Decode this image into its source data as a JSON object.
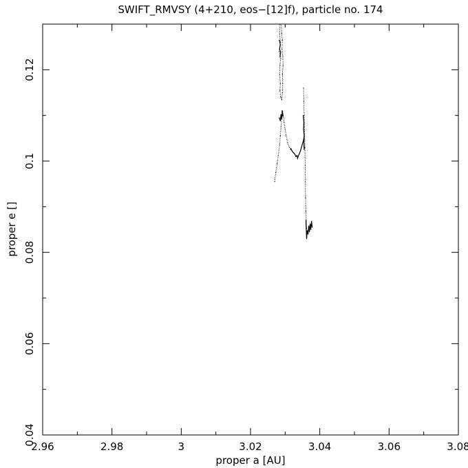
{
  "chart_data": {
    "type": "line",
    "title": "SWIFT_RMVSY (4+210, eos−[12]f), particle no. 174",
    "xlabel": "proper a [AU]",
    "ylabel": "proper e []",
    "xlim": [
      2.96,
      3.08
    ],
    "ylim": [
      0.04,
      0.13
    ],
    "x_ticks": [
      2.96,
      2.98,
      3.0,
      3.02,
      3.04,
      3.06,
      3.08
    ],
    "x_tick_labels": [
      "2.96",
      "2.98",
      "3",
      "3.02",
      "3.04",
      "3.06",
      "3.08"
    ],
    "y_ticks": [
      0.04,
      0.06,
      0.08,
      0.1,
      0.12
    ],
    "y_tick_labels": [
      "0.04",
      "0.06",
      "0.08",
      "0.1",
      "0.12"
    ],
    "grid": false,
    "series": [
      {
        "values": [
          [
            3.0285,
            0.13
          ],
          [
            3.0284,
            0.128
          ],
          [
            3.0286,
            0.126
          ],
          [
            3.0283,
            0.124
          ],
          [
            3.0287,
            0.1225
          ],
          [
            3.0285,
            0.121
          ],
          [
            3.0284,
            0.119
          ],
          [
            3.0286,
            0.117
          ],
          [
            3.0285,
            0.1155
          ],
          [
            3.0287,
            0.114
          ],
          [
            3.029,
            0.1135
          ],
          [
            3.0292,
            0.115
          ],
          [
            3.0293,
            0.117
          ],
          [
            3.0292,
            0.119
          ],
          [
            3.0294,
            0.121
          ],
          [
            3.0293,
            0.123
          ],
          [
            3.0291,
            0.1245
          ],
          [
            3.0292,
            0.1265
          ],
          [
            3.029,
            0.128
          ],
          [
            3.0289,
            0.13
          ]
        ],
        "style": "dotted"
      },
      {
        "values": [
          [
            3.0283,
            0.1265
          ],
          [
            3.0286,
            0.1255
          ],
          [
            3.0284,
            0.1245
          ],
          [
            3.0287,
            0.1238
          ],
          [
            3.0285,
            0.1228
          ]
        ],
        "style": "solid"
      },
      {
        "values": [
          [
            3.027,
            0.0955
          ],
          [
            3.0273,
            0.0975
          ],
          [
            3.0277,
            0.0995
          ],
          [
            3.028,
            0.1012
          ],
          [
            3.0284,
            0.1035
          ],
          [
            3.0286,
            0.1055
          ],
          [
            3.0288,
            0.1075
          ],
          [
            3.029,
            0.1095
          ],
          [
            3.0291,
            0.111
          ],
          [
            3.0294,
            0.11
          ],
          [
            3.0297,
            0.1085
          ],
          [
            3.03,
            0.107
          ],
          [
            3.0303,
            0.1055
          ],
          [
            3.0307,
            0.104
          ],
          [
            3.0312,
            0.103
          ],
          [
            3.0316,
            0.1025
          ]
        ],
        "style": "dotted"
      },
      {
        "values": [
          [
            3.0283,
            0.1095
          ],
          [
            3.0286,
            0.1088
          ],
          [
            3.0288,
            0.1102
          ],
          [
            3.029,
            0.1092
          ],
          [
            3.0292,
            0.111
          ],
          [
            3.0294,
            0.1098
          ]
        ],
        "style": "solid"
      },
      {
        "values": [
          [
            3.0316,
            0.1028
          ],
          [
            3.032,
            0.1022
          ],
          [
            3.0324,
            0.1018
          ],
          [
            3.0328,
            0.1015
          ],
          [
            3.0331,
            0.101
          ],
          [
            3.0334,
            0.1012
          ],
          [
            3.0336,
            0.1006
          ],
          [
            3.0338,
            0.1012
          ],
          [
            3.0341,
            0.1016
          ],
          [
            3.0344,
            0.1022
          ],
          [
            3.0347,
            0.103
          ],
          [
            3.035,
            0.1038
          ],
          [
            3.0353,
            0.1046
          ],
          [
            3.0355,
            0.1055
          ]
        ],
        "style": "solid"
      },
      {
        "values": [
          [
            3.0353,
            0.116
          ],
          [
            3.0354,
            0.113
          ],
          [
            3.0355,
            0.11
          ],
          [
            3.0356,
            0.1065
          ],
          [
            3.0357,
            0.103
          ],
          [
            3.0358,
            0.099
          ],
          [
            3.0358,
            0.0955
          ],
          [
            3.0359,
            0.092
          ],
          [
            3.036,
            0.089
          ],
          [
            3.0361,
            0.087
          ],
          [
            3.0362,
            0.0852
          ]
        ],
        "style": "dotted"
      },
      {
        "values": [
          [
            3.0352,
            0.11
          ],
          [
            3.0354,
            0.1085
          ],
          [
            3.0353,
            0.107
          ],
          [
            3.0355,
            0.1055
          ],
          [
            3.0354,
            0.104
          ],
          [
            3.0355,
            0.1025
          ]
        ],
        "style": "solid"
      },
      {
        "values": [
          [
            3.036,
            0.087
          ],
          [
            3.0362,
            0.083
          ],
          [
            3.0364,
            0.0848
          ],
          [
            3.0366,
            0.084
          ],
          [
            3.0368,
            0.0858
          ],
          [
            3.037,
            0.0845
          ],
          [
            3.0372,
            0.0862
          ],
          [
            3.0374,
            0.085
          ],
          [
            3.0376,
            0.0868
          ],
          [
            3.0378,
            0.0855
          ]
        ],
        "style": "solid"
      }
    ]
  }
}
